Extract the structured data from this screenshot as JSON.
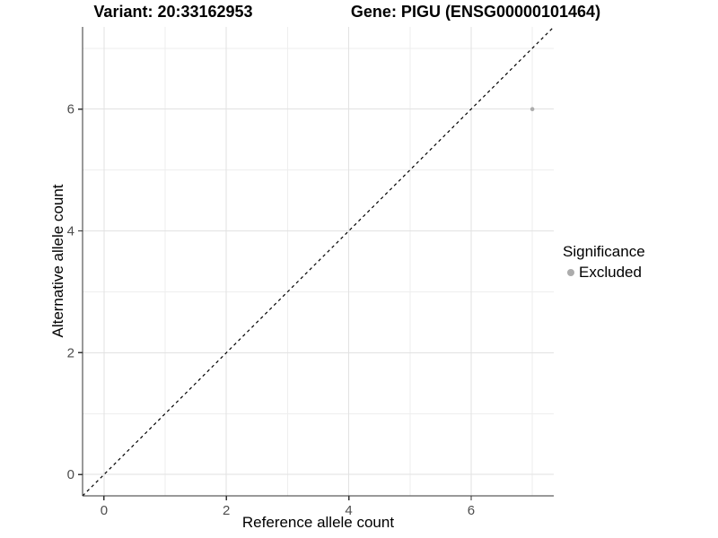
{
  "chart_data": {
    "type": "scatter",
    "title_left": "Variant: 20:33162953",
    "title_right": "Gene: PIGU (ENSG00000101464)",
    "xlabel": "Reference allele count",
    "ylabel": "Alternative allele count",
    "xlim": [
      -0.35,
      7.35
    ],
    "ylim": [
      -0.35,
      7.35
    ],
    "xticks": [
      0,
      2,
      4,
      6
    ],
    "yticks": [
      0,
      2,
      4,
      6
    ],
    "xminor": [
      1,
      3,
      5,
      7
    ],
    "yminor": [
      1,
      3,
      5,
      7
    ],
    "grid": "on",
    "series": [
      {
        "name": "Excluded",
        "color": "#acacac",
        "points": [
          {
            "x": 7,
            "y": 6
          }
        ]
      }
    ],
    "reference_line": {
      "type": "identity",
      "from": -0.35,
      "to": 7.35,
      "style": "dashed",
      "color": "#000000"
    },
    "legend": {
      "title": "Significance",
      "position": "right",
      "items": [
        {
          "label": "Excluded",
          "color": "#acacac"
        }
      ]
    }
  },
  "colors": {
    "background": "#ffffff",
    "grid_major": "#e2e2e2",
    "grid_minor": "#eeeeee",
    "axis_line": "#333333",
    "tick_label": "#4d4d4d",
    "point": "#acacac"
  }
}
